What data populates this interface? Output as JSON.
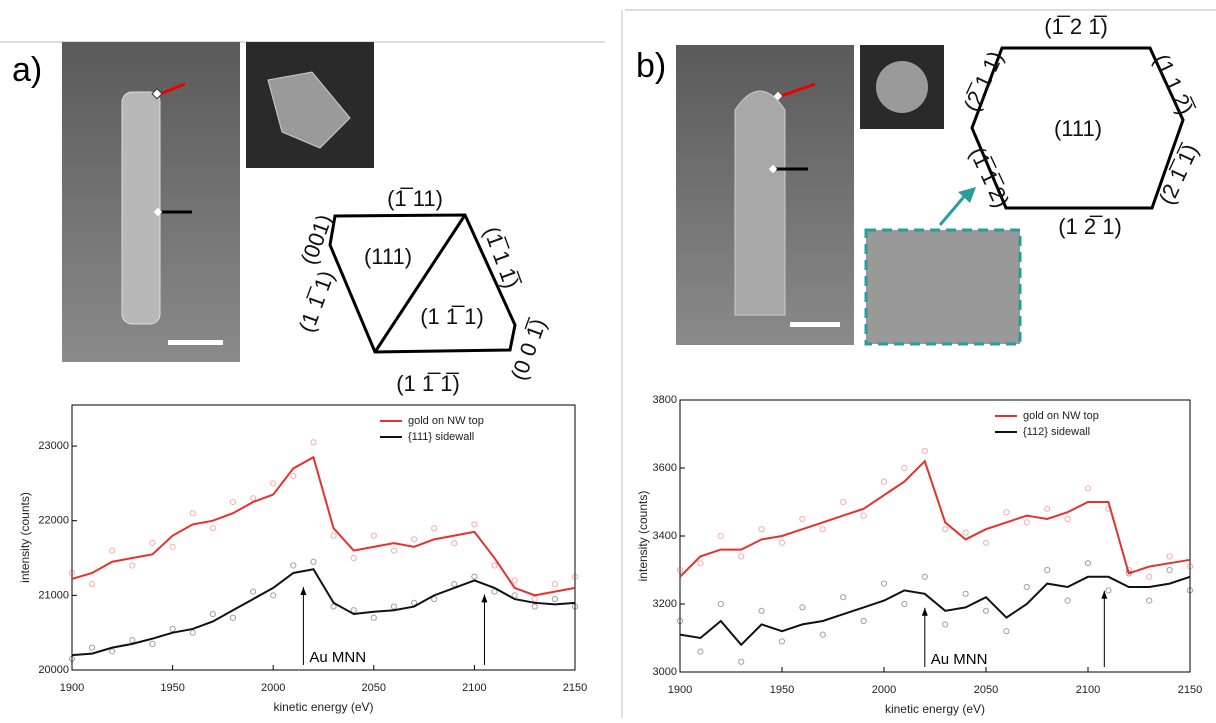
{
  "panels": [
    {
      "label": "a)",
      "facets": [
        "(1̅ 11)",
        "(001)",
        "(111)",
        "(1̅ 1 1̅)",
        "(1 1̅ 1)",
        "(1 1̅ 1)",
        "(1 1̅ 1̅)",
        "(0 0 1̅)"
      ]
    },
    {
      "label": "b)",
      "facets": [
        "(1̅ 2 1̅)",
        "(111)",
        "(2̅ 1 1)",
        "(1 1 2̅)",
        "(1̅ 1̅ 2)",
        "(2 1̅ 1̅)",
        "(1 2̅ 1)"
      ]
    }
  ],
  "chart_data": [
    {
      "type": "line",
      "xlabel": "kinetic energy (eV)",
      "ylabel": "intensity (counts)",
      "annotation": "Au MNN",
      "arrows": [
        2015,
        2105
      ],
      "x": [
        1900,
        1910,
        1920,
        1930,
        1940,
        1950,
        1960,
        1970,
        1980,
        1990,
        2000,
        2010,
        2020,
        2030,
        2040,
        2050,
        2060,
        2070,
        2080,
        2090,
        2100,
        2110,
        2120,
        2130,
        2140,
        2150
      ],
      "xlim": [
        1900,
        2150
      ],
      "xticks": [
        1900,
        1950,
        2000,
        2050,
        2100,
        2150
      ],
      "ylim": [
        20000,
        23550
      ],
      "yticks": [
        20000,
        21000,
        22000,
        23000
      ],
      "legend": "upper right",
      "series": [
        {
          "name": "gold on NW top",
          "color": "#e8302a",
          "values": [
            21220,
            21300,
            21450,
            21500,
            21550,
            21800,
            21950,
            22000,
            22100,
            22250,
            22350,
            22700,
            22850,
            21900,
            21600,
            21650,
            21700,
            21650,
            21750,
            21800,
            21850,
            21500,
            21100,
            21000,
            21050,
            21100
          ],
          "points": [
            21300,
            21150,
            21600,
            21400,
            21700,
            21650,
            22100,
            21900,
            22250,
            22300,
            22500,
            22600,
            23050,
            21800,
            21500,
            21800,
            21600,
            21750,
            21900,
            21700,
            21950,
            21400,
            21200,
            20950,
            21150,
            21250
          ]
        },
        {
          "name": "{111} sidewall",
          "color": "#111111",
          "values": [
            20200,
            20220,
            20300,
            20350,
            20420,
            20500,
            20550,
            20650,
            20800,
            20950,
            21100,
            21300,
            21350,
            20900,
            20750,
            20780,
            20800,
            20850,
            21000,
            21100,
            21200,
            21100,
            20950,
            20900,
            20880,
            20900
          ],
          "points": [
            20150,
            20300,
            20250,
            20400,
            20350,
            20550,
            20500,
            20750,
            20700,
            21050,
            21000,
            21400,
            21450,
            20850,
            20800,
            20700,
            20850,
            20900,
            20950,
            21150,
            21250,
            21050,
            21000,
            20850,
            20950,
            20850
          ]
        }
      ]
    },
    {
      "type": "line",
      "xlabel": "kinetic energy (eV)",
      "ylabel": "intensity (counts)",
      "annotation": "Au MNN",
      "arrows": [
        2020,
        2108
      ],
      "x": [
        1900,
        1910,
        1920,
        1930,
        1940,
        1950,
        1960,
        1970,
        1980,
        1990,
        2000,
        2010,
        2020,
        2030,
        2040,
        2050,
        2060,
        2070,
        2080,
        2090,
        2100,
        2110,
        2120,
        2130,
        2140,
        2150
      ],
      "xlim": [
        1900,
        2150
      ],
      "xticks": [
        1900,
        1950,
        2000,
        2050,
        2100,
        2150
      ],
      "ylim": [
        3000,
        3800
      ],
      "yticks": [
        3000,
        3200,
        3400,
        3600,
        3800
      ],
      "legend": "upper right",
      "series": [
        {
          "name": "gold on NW top",
          "color": "#e8302a",
          "values": [
            3280,
            3340,
            3360,
            3360,
            3390,
            3400,
            3420,
            3440,
            3460,
            3480,
            3520,
            3560,
            3620,
            3440,
            3390,
            3420,
            3440,
            3460,
            3450,
            3470,
            3500,
            3500,
            3290,
            3310,
            3320,
            3330
          ],
          "points": [
            3300,
            3320,
            3400,
            3340,
            3420,
            3380,
            3450,
            3420,
            3500,
            3460,
            3560,
            3600,
            3650,
            3420,
            3410,
            3380,
            3470,
            3440,
            3480,
            3450,
            3540,
            3480,
            3300,
            3280,
            3340,
            3310
          ]
        },
        {
          "name": "{112} sidewall",
          "color": "#111111",
          "values": [
            3110,
            3100,
            3150,
            3080,
            3140,
            3120,
            3140,
            3150,
            3170,
            3190,
            3210,
            3240,
            3230,
            3180,
            3190,
            3220,
            3160,
            3200,
            3260,
            3250,
            3280,
            3280,
            3250,
            3250,
            3260,
            3280
          ],
          "points": [
            3150,
            3060,
            3200,
            3030,
            3180,
            3090,
            3190,
            3110,
            3220,
            3150,
            3260,
            3200,
            3280,
            3140,
            3230,
            3180,
            3120,
            3250,
            3300,
            3210,
            3320,
            3240,
            3290,
            3210,
            3300,
            3240
          ]
        }
      ]
    }
  ]
}
